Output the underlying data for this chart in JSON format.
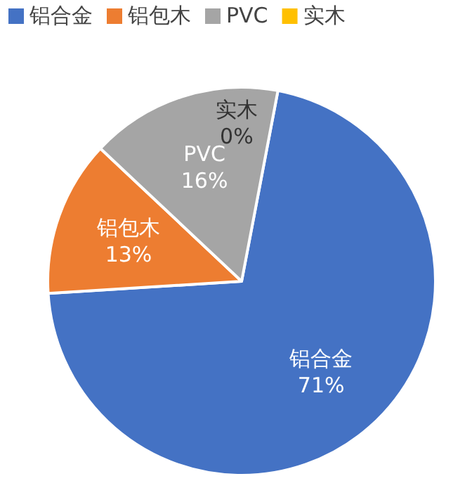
{
  "chart_data": {
    "type": "pie",
    "categories": [
      "铝合金",
      "铝包木",
      "PVC",
      "实木"
    ],
    "values": [
      71,
      13,
      16,
      0
    ],
    "colors": [
      "#4472c4",
      "#ed7d31",
      "#a5a5a5",
      "#ffc000"
    ],
    "value_labels": [
      "71%",
      "13%",
      "16%",
      "0%"
    ],
    "legend": "top"
  }
}
